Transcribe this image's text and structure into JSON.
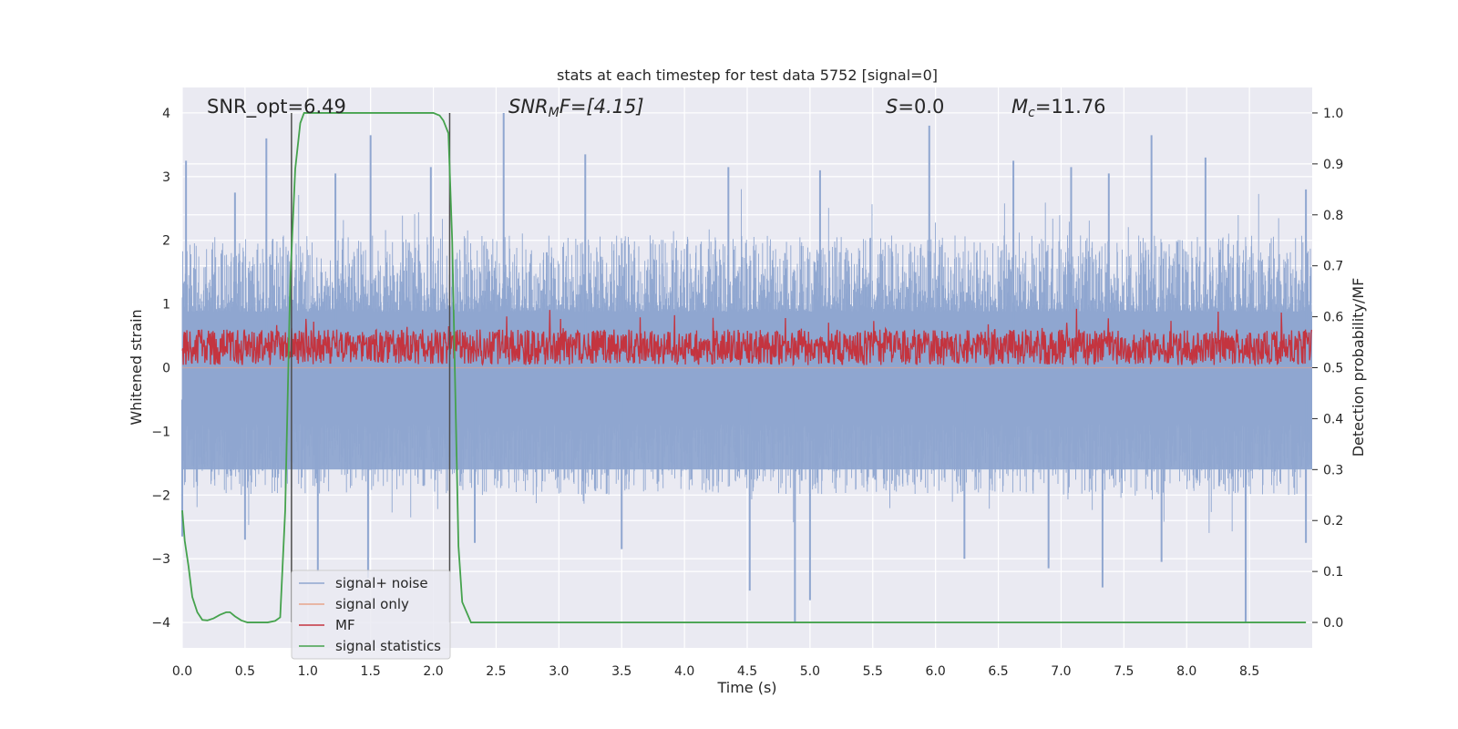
{
  "chart_data": {
    "type": "line",
    "title": "stats at each timestep for test data 5752 [signal=0]",
    "xlabel": "Time (s)",
    "ylabel_left": "Whitened strain",
    "ylabel_right": "Detection probability/MF",
    "xlim": [
      0.0,
      9.0
    ],
    "ylim_left": [
      -4.4,
      4.4
    ],
    "ylim_right": [
      -0.05,
      1.05
    ],
    "xticks": [
      0.0,
      0.5,
      1.0,
      1.5,
      2.0,
      2.5,
      3.0,
      3.5,
      4.0,
      4.5,
      5.0,
      5.5,
      6.0,
      6.5,
      7.0,
      7.5,
      8.0,
      8.5
    ],
    "xtick_labels": [
      "0.0",
      "0.5",
      "1.0",
      "1.5",
      "2.0",
      "2.5",
      "3.0",
      "3.5",
      "4.0",
      "4.5",
      "5.0",
      "5.5",
      "6.0",
      "6.5",
      "7.0",
      "7.5",
      "8.0",
      "8.5"
    ],
    "yticks_left": [
      4,
      3,
      2,
      1,
      0,
      -1,
      -2,
      -3,
      -4
    ],
    "ytick_labels_left": [
      "4",
      "3",
      "2",
      "1",
      "0",
      "−1",
      "−2",
      "−3",
      "−4"
    ],
    "yticks_right": [
      1.0,
      0.9,
      0.8,
      0.7,
      0.6,
      0.5,
      0.4,
      0.3,
      0.2,
      0.1,
      0.0
    ],
    "ytick_labels_right": [
      "1.0",
      "0.9",
      "0.8",
      "0.7",
      "0.6",
      "0.5",
      "0.4",
      "0.3",
      "0.2",
      "0.1",
      "0.0"
    ],
    "annotations": {
      "snr_opt": "SNR_opt=6.49",
      "snr_mf_main": "SNR",
      "snr_mf_sub": "M",
      "snr_mf_tail": "F=[4.15]",
      "s_main": "S",
      "s_tail": "=0.0",
      "mc_main": "M",
      "mc_sub": "c",
      "mc_tail": "=11.76"
    },
    "legend": {
      "location": "lower-left",
      "entries": [
        {
          "label": "signal+ noise",
          "color": "#8fa6d0"
        },
        {
          "label": "signal only",
          "color": "#e8a48b"
        },
        {
          "label": "MF",
          "color": "#c4343f"
        },
        {
          "label": "signal statistics",
          "color": "#45a24d"
        }
      ]
    },
    "vertical_markers": [
      {
        "x": 0.87,
        "y_range": [
          -4.0,
          4.0
        ],
        "color": "#4d4d4d"
      },
      {
        "x": 2.13,
        "y_range": [
          -4.0,
          4.0
        ],
        "color": "#4d4d4d"
      }
    ],
    "series": [
      {
        "name": "signal+ noise",
        "axis": "left",
        "color": "#8fa6d0",
        "envelope_half_width": 1.6,
        "mean": 0.0,
        "peaks_pos": [
          [
            0.03,
            3.25
          ],
          [
            0.42,
            2.75
          ],
          [
            0.67,
            3.6
          ],
          [
            1.22,
            3.05
          ],
          [
            1.5,
            3.65
          ],
          [
            1.98,
            3.15
          ],
          [
            2.56,
            4.0
          ],
          [
            3.21,
            3.35
          ],
          [
            4.35,
            3.15
          ],
          [
            5.08,
            3.1
          ],
          [
            5.95,
            3.8
          ],
          [
            6.62,
            3.25
          ],
          [
            7.08,
            3.15
          ],
          [
            7.38,
            3.05
          ],
          [
            7.72,
            3.65
          ],
          [
            8.15,
            3.3
          ],
          [
            8.95,
            2.8
          ]
        ],
        "peaks_neg": [
          [
            0.0,
            -2.65
          ],
          [
            0.5,
            -2.7
          ],
          [
            1.08,
            -3.2
          ],
          [
            1.48,
            -3.3
          ],
          [
            2.33,
            -2.75
          ],
          [
            3.5,
            -2.85
          ],
          [
            4.52,
            -3.5
          ],
          [
            4.88,
            -4.0
          ],
          [
            5.0,
            -3.65
          ],
          [
            6.23,
            -3.0
          ],
          [
            6.9,
            -3.15
          ],
          [
            7.33,
            -3.45
          ],
          [
            7.8,
            -3.05
          ],
          [
            8.47,
            -4.0
          ],
          [
            8.95,
            -2.75
          ]
        ]
      },
      {
        "name": "signal only",
        "axis": "left",
        "color": "#e8a48b",
        "x": [
          0.0,
          9.0
        ],
        "y": [
          0.0,
          0.0
        ]
      },
      {
        "name": "MF",
        "axis": "right",
        "color": "#c4343f",
        "mean": 0.54,
        "min": 0.5,
        "max": 0.63
      },
      {
        "name": "signal statistics",
        "axis": "right",
        "color": "#45a24d",
        "x": [
          0.0,
          0.02,
          0.05,
          0.08,
          0.12,
          0.16,
          0.2,
          0.25,
          0.3,
          0.35,
          0.38,
          0.42,
          0.47,
          0.52,
          0.6,
          0.68,
          0.74,
          0.78,
          0.82,
          0.86,
          0.9,
          0.94,
          0.97,
          1.0,
          1.1,
          1.5,
          1.9,
          2.0,
          2.05,
          2.08,
          2.12,
          2.15,
          2.18,
          2.2,
          2.23,
          2.3,
          2.6,
          3.0,
          4.0,
          5.0,
          6.0,
          7.0,
          8.0,
          8.95
        ],
        "y": [
          0.22,
          0.16,
          0.11,
          0.05,
          0.02,
          0.005,
          0.004,
          0.008,
          0.015,
          0.02,
          0.02,
          0.012,
          0.004,
          0.0,
          0.0,
          0.0,
          0.003,
          0.01,
          0.22,
          0.67,
          0.89,
          0.98,
          1.0,
          1.0,
          1.0,
          1.0,
          1.0,
          1.0,
          0.995,
          0.985,
          0.96,
          0.75,
          0.39,
          0.15,
          0.04,
          0.0,
          0.0,
          0.0,
          0.0,
          0.0,
          0.0,
          0.0,
          0.0,
          0.0
        ]
      }
    ]
  }
}
